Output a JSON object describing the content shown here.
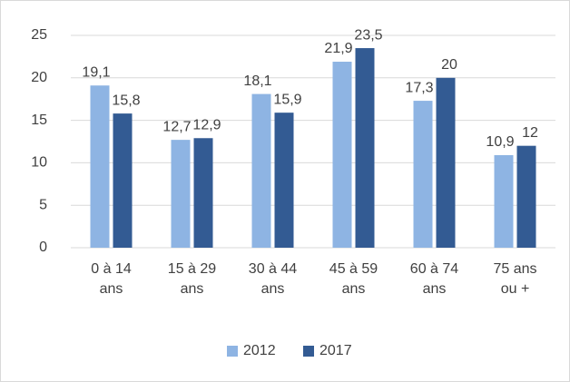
{
  "chart_data": {
    "type": "bar",
    "categories": [
      "0 à 14 ans",
      "15 à 29 ans",
      "30 à 44 ans",
      "45 à 59 ans",
      "60 à 74 ans",
      "75 ans ou +"
    ],
    "series": [
      {
        "name": "2012",
        "color": "#8eb4e3",
        "values": [
          19.1,
          12.7,
          18.1,
          21.9,
          17.3,
          10.9
        ],
        "value_labels": [
          "19,1",
          "12,7",
          "18,1",
          "21,9",
          "17,3",
          "10,9"
        ]
      },
      {
        "name": "2017",
        "color": "#335b93",
        "values": [
          15.8,
          12.9,
          15.9,
          23.5,
          20,
          12
        ],
        "value_labels": [
          "15,8",
          "12,9",
          "15,9",
          "23,5",
          "20",
          "12"
        ]
      }
    ],
    "ylim": [
      0,
      25
    ],
    "yticks": [
      0,
      5,
      10,
      15,
      20,
      25
    ],
    "grid": true,
    "legend": "bottom"
  }
}
